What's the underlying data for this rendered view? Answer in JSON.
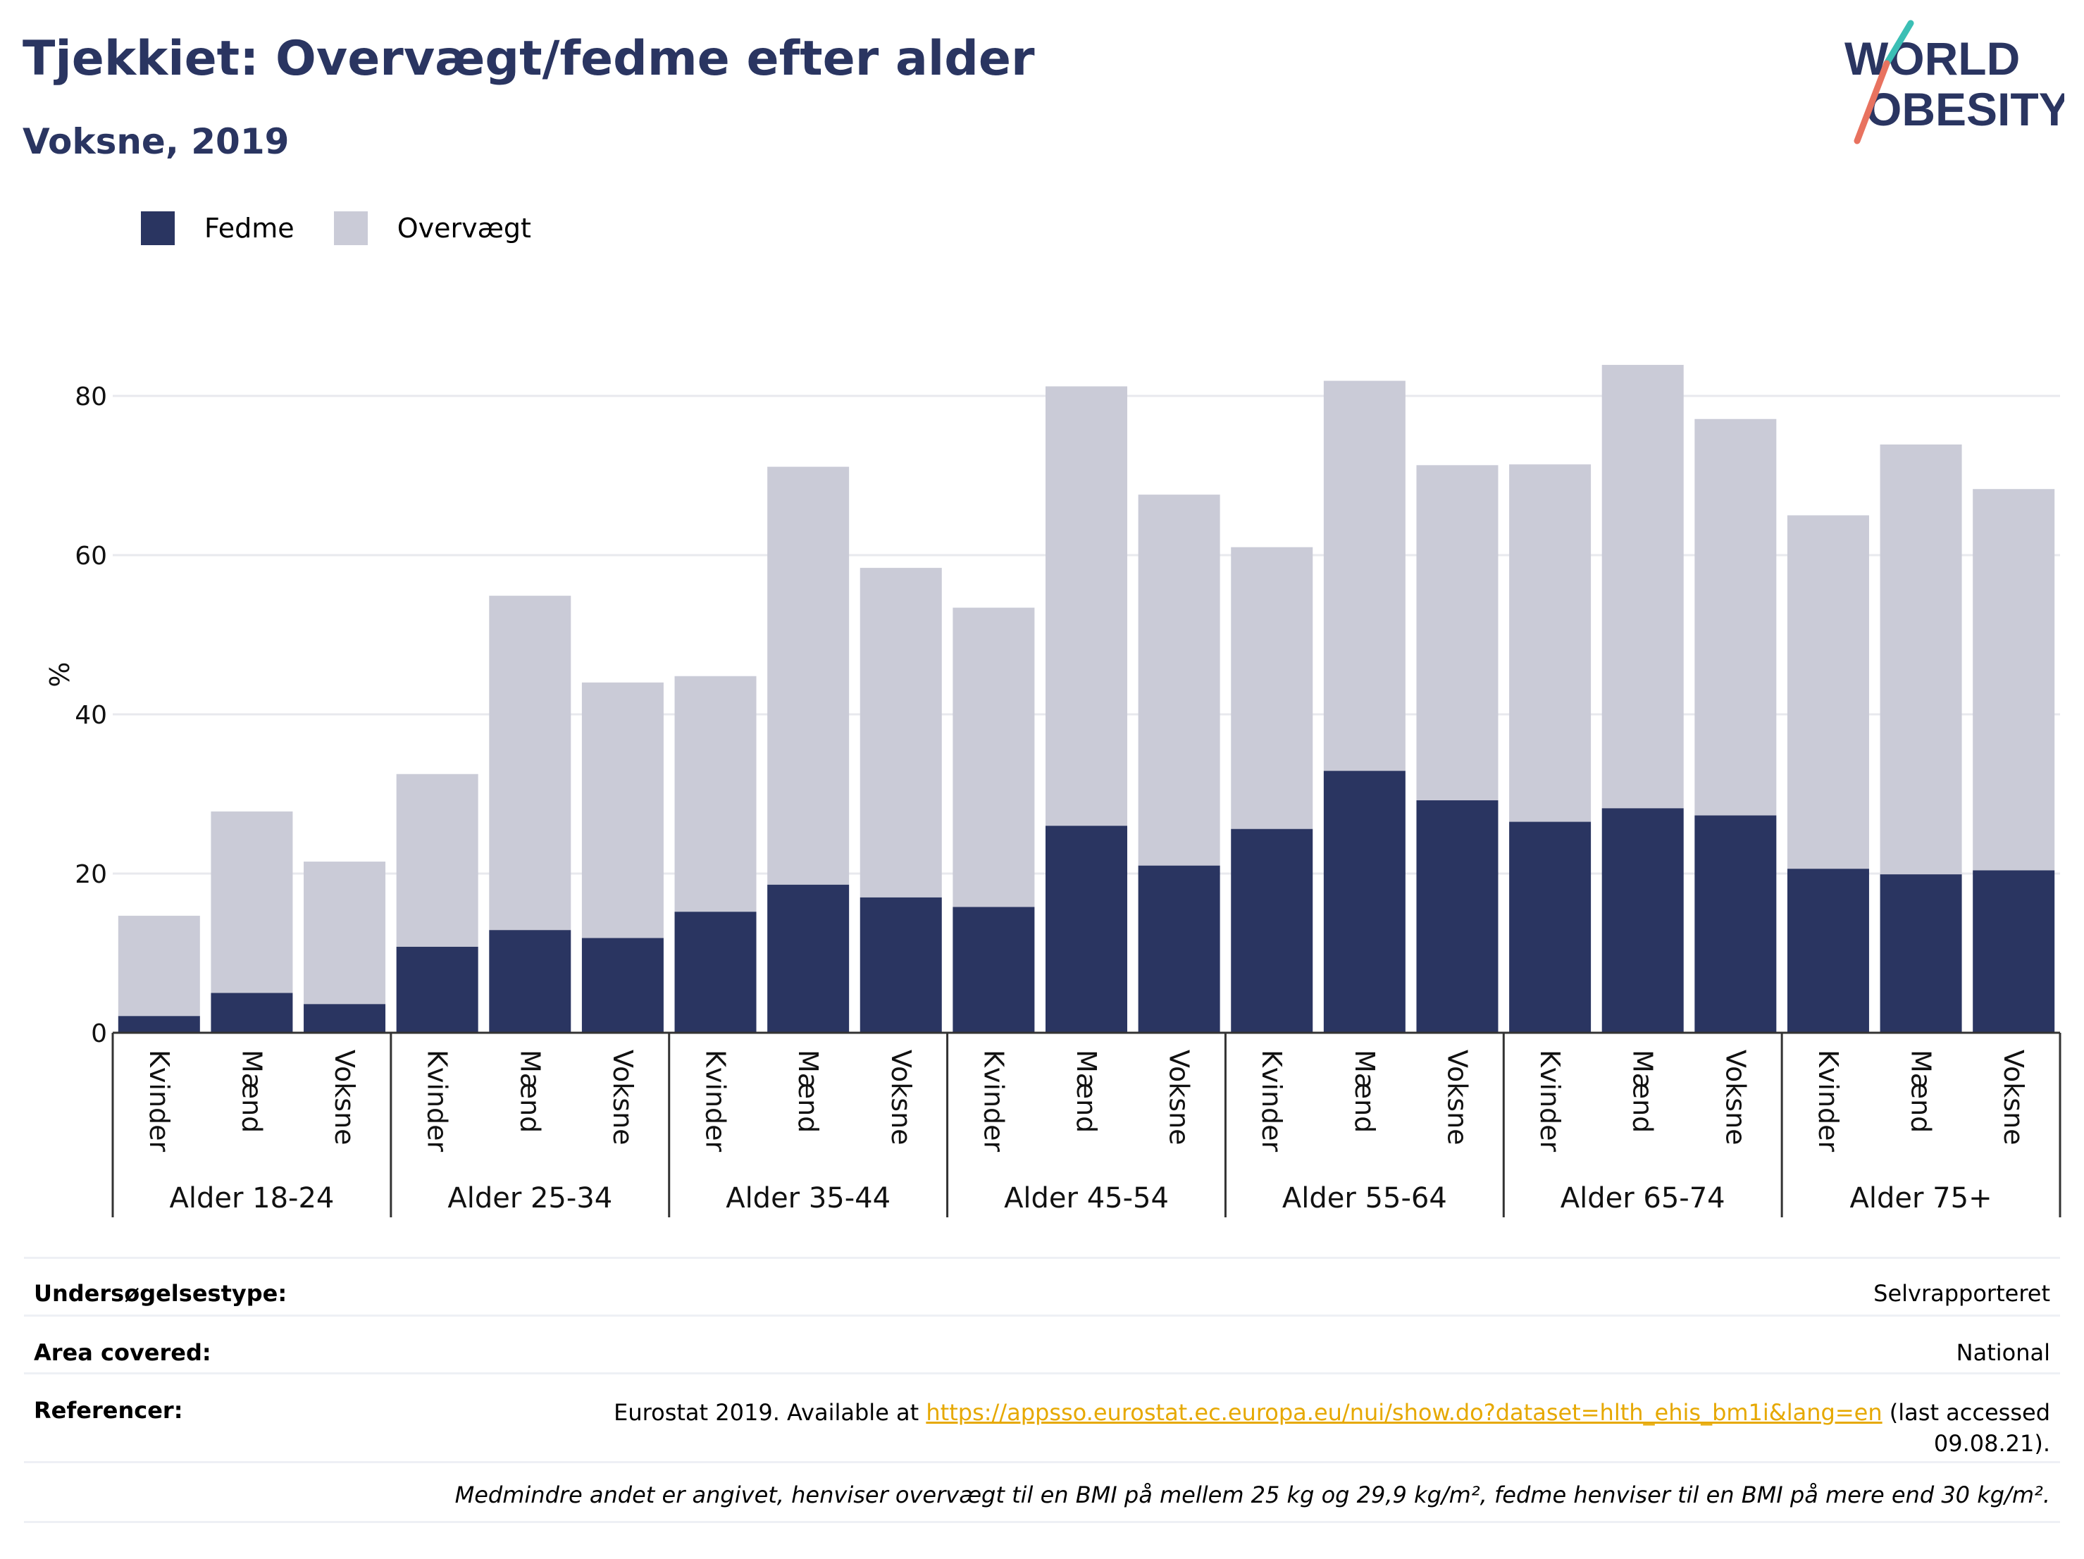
{
  "title": "Tjekkiet: Overvægt/fedme efter alder",
  "subtitle": "Voksne, 2019",
  "logo": {
    "line1": "WORLD",
    "line2": "OBESITY"
  },
  "legend": [
    {
      "label": "Fedme",
      "color": "#2a3561"
    },
    {
      "label": "Overvægt",
      "color": "#cacbd7"
    }
  ],
  "chart_data": {
    "type": "bar",
    "stacked": true,
    "ylabel": "%",
    "ylim": [
      0,
      90
    ],
    "yticks": [
      0,
      20,
      40,
      60,
      80
    ],
    "grid": true,
    "legend_position": "top-left",
    "groups": [
      "Alder 18-24",
      "Alder 25-34",
      "Alder 35-44",
      "Alder 45-54",
      "Alder 55-64",
      "Alder 65-74",
      "Alder 75+"
    ],
    "subcategories": [
      "Kvinder",
      "Mænd",
      "Voksne"
    ],
    "series": [
      {
        "name": "Fedme",
        "color": "#2a3561",
        "values": [
          [
            2.1,
            5.0,
            3.6
          ],
          [
            10.8,
            12.9,
            11.9
          ],
          [
            15.2,
            18.6,
            17.0
          ],
          [
            15.8,
            26.0,
            21.0
          ],
          [
            25.6,
            32.9,
            29.2
          ],
          [
            26.5,
            28.2,
            27.3
          ],
          [
            20.6,
            19.9,
            20.4
          ]
        ]
      },
      {
        "name": "Overvægt",
        "color": "#cacbd7",
        "values": [
          [
            12.6,
            22.8,
            17.9
          ],
          [
            21.7,
            42.0,
            32.1
          ],
          [
            29.6,
            52.5,
            41.4
          ],
          [
            37.6,
            55.2,
            46.6
          ],
          [
            35.4,
            49.0,
            42.1
          ],
          [
            44.9,
            55.7,
            49.8
          ],
          [
            44.4,
            54.0,
            47.9
          ]
        ]
      }
    ]
  },
  "info": {
    "survey_key": "Undersøgelsestype:",
    "survey_val": "Selvrapporteret",
    "area_key": "Area covered:",
    "area_val": "National",
    "ref_key": "Referencer:",
    "ref_pre": "Eurostat 2019. Available at",
    "ref_link": "https://appsso.eurostat.ec.europa.eu/nui/show.do?dataset=hlth_ehis_bm1i&lang=en",
    "ref_post": "(last accessed",
    "ref_date": "09.08.21).",
    "note": "Medmindre andet er angivet, henviser overvægt til en BMI på mellem 25 kg og 29,9 kg/m², fedme henviser til en BMI på mere end 30 kg/m²."
  }
}
